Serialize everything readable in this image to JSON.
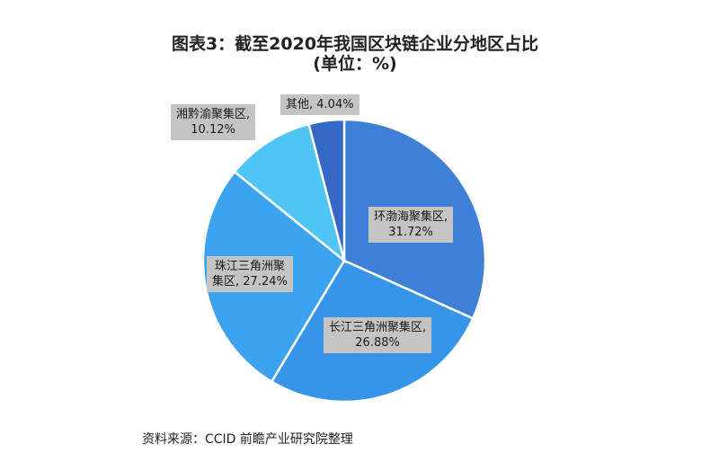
{
  "chart_data": {
    "type": "pie",
    "title_line1": "图表3：截至2020年我国区块链企业分地区占比",
    "title_line2": "(单位：%)",
    "slices": [
      {
        "label": "环渤海聚集区,",
        "value": 31.72,
        "value_text": "31.72%",
        "color": "#3e7fd8"
      },
      {
        "label": "长江三角洲聚集区,",
        "value": 26.88,
        "value_text": "26.88%",
        "color": "#3795e9"
      },
      {
        "label": "珠江三角洲聚集区,",
        "value": 27.24,
        "value_text": "27.24%",
        "color": "#3ba3ef"
      },
      {
        "label": "湘黔渝聚集区,",
        "value": 10.12,
        "value_text": "10.12%",
        "color": "#4ec5f4"
      },
      {
        "label": "其他,",
        "value": 4.04,
        "value_text": "4.04%",
        "color": "#3468c4"
      }
    ]
  },
  "source": "资料来源：CCID 前瞻产业研究院整理"
}
